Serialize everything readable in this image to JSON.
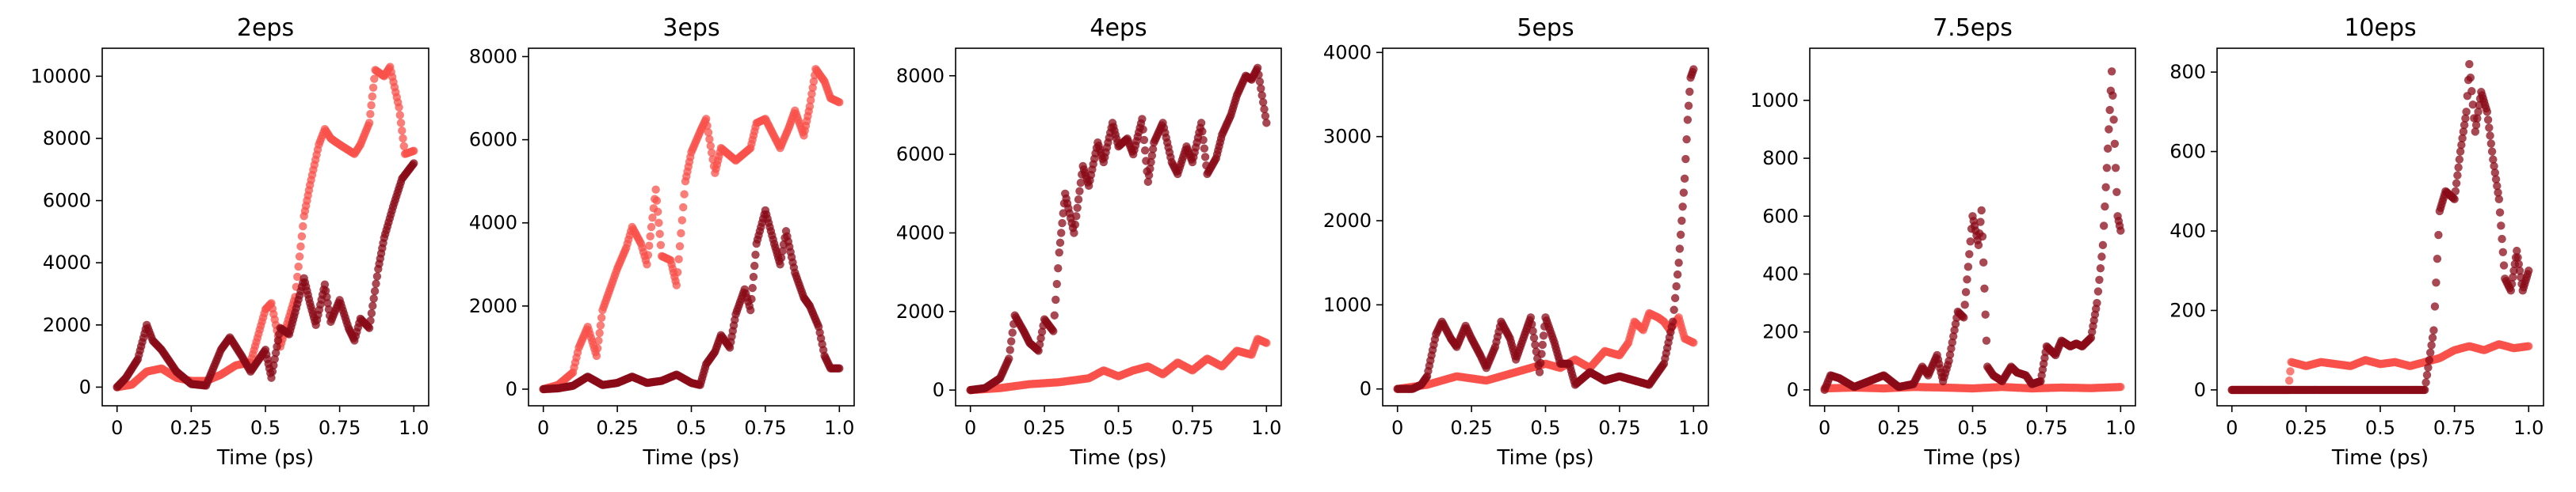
{
  "colors": {
    "series_a": "#f8524b",
    "series_b": "#8a0b18"
  },
  "chart_data": [
    {
      "type": "scatter",
      "title": "2eps",
      "xlabel": "Time (ps)",
      "xlim": [
        -0.05,
        1.05
      ],
      "ylim": [
        -600,
        10900
      ],
      "xticks": [
        0,
        0.25,
        0.5,
        0.75,
        1.0
      ],
      "xtick_labels": [
        "0",
        "0.25",
        "0.5",
        "0.75",
        "1.0"
      ],
      "yticks": [
        0,
        2000,
        4000,
        6000,
        8000,
        10000
      ],
      "ytick_labels": [
        "0",
        "2000",
        "4000",
        "6000",
        "8000",
        "10000"
      ],
      "series": [
        {
          "color": "series_a",
          "x": [
            0,
            0.05,
            0.1,
            0.15,
            0.2,
            0.25,
            0.3,
            0.35,
            0.4,
            0.45,
            0.5,
            0.52,
            0.55,
            0.6,
            0.63,
            0.65,
            0.68,
            0.7,
            0.72,
            0.75,
            0.8,
            0.82,
            0.85,
            0.87,
            0.9,
            0.92,
            0.95,
            0.97,
            1.0
          ],
          "y": [
            0,
            80,
            500,
            600,
            300,
            200,
            200,
            400,
            700,
            800,
            2500,
            2700,
            1300,
            2900,
            5500,
            6500,
            7800,
            8300,
            8000,
            7800,
            7500,
            7800,
            8500,
            10200,
            10000,
            10300,
            9000,
            7500,
            7600
          ]
        },
        {
          "color": "series_b",
          "x": [
            0,
            0.03,
            0.07,
            0.1,
            0.12,
            0.15,
            0.2,
            0.25,
            0.3,
            0.35,
            0.38,
            0.42,
            0.45,
            0.5,
            0.52,
            0.55,
            0.58,
            0.6,
            0.63,
            0.65,
            0.67,
            0.7,
            0.72,
            0.75,
            0.78,
            0.8,
            0.82,
            0.85,
            0.88,
            0.9,
            0.93,
            0.96,
            1.0
          ],
          "y": [
            0,
            300,
            900,
            2000,
            1500,
            1200,
            500,
            100,
            50,
            1200,
            1600,
            1000,
            500,
            1200,
            300,
            1900,
            1700,
            2400,
            3500,
            2700,
            2000,
            3300,
            2100,
            2800,
            1900,
            1500,
            2200,
            1900,
            3800,
            4800,
            5800,
            6700,
            7200
          ]
        }
      ]
    },
    {
      "type": "scatter",
      "title": "3eps",
      "xlabel": "Time (ps)",
      "xlim": [
        -0.05,
        1.05
      ],
      "ylim": [
        -400,
        8200
      ],
      "xticks": [
        0,
        0.25,
        0.5,
        0.75,
        1.0
      ],
      "xtick_labels": [
        "0",
        "0.25",
        "0.5",
        "0.75",
        "1.0"
      ],
      "yticks": [
        0,
        2000,
        4000,
        6000,
        8000
      ],
      "ytick_labels": [
        "0",
        "2000",
        "4000",
        "6000",
        "8000"
      ],
      "series": [
        {
          "color": "series_a",
          "x": [
            0,
            0.05,
            0.1,
            0.12,
            0.15,
            0.18,
            0.2,
            0.23,
            0.25,
            0.28,
            0.3,
            0.33,
            0.35,
            0.38,
            0.4,
            0.43,
            0.45,
            0.48,
            0.5,
            0.53,
            0.55,
            0.58,
            0.6,
            0.65,
            0.7,
            0.72,
            0.75,
            0.8,
            0.83,
            0.85,
            0.88,
            0.9,
            0.92,
            0.95,
            0.97,
            1.0
          ],
          "y": [
            0,
            100,
            400,
            1000,
            1500,
            800,
            1900,
            2500,
            2900,
            3400,
            3900,
            3500,
            3000,
            4800,
            3200,
            3100,
            2500,
            5000,
            5700,
            6200,
            6500,
            5200,
            5800,
            5500,
            5800,
            6400,
            6500,
            5800,
            6300,
            6700,
            6100,
            6800,
            7700,
            7400,
            7000,
            6900
          ]
        },
        {
          "color": "series_b",
          "x": [
            0,
            0.05,
            0.1,
            0.15,
            0.2,
            0.25,
            0.3,
            0.35,
            0.4,
            0.45,
            0.5,
            0.53,
            0.55,
            0.58,
            0.6,
            0.63,
            0.65,
            0.68,
            0.7,
            0.72,
            0.75,
            0.78,
            0.8,
            0.82,
            0.85,
            0.88,
            0.9,
            0.93,
            0.95,
            0.97,
            1.0
          ],
          "y": [
            0,
            20,
            80,
            300,
            100,
            150,
            300,
            150,
            200,
            350,
            150,
            100,
            600,
            900,
            1300,
            1000,
            1800,
            2400,
            1900,
            3500,
            4300,
            3500,
            3000,
            3800,
            2800,
            2200,
            2000,
            1500,
            800,
            500,
            500
          ]
        }
      ]
    },
    {
      "type": "scatter",
      "title": "4eps",
      "xlabel": "Time (ps)",
      "xlim": [
        -0.05,
        1.05
      ],
      "ylim": [
        -400,
        8700
      ],
      "xticks": [
        0,
        0.25,
        0.5,
        0.75,
        1.0
      ],
      "xtick_labels": [
        "0",
        "0.25",
        "0.5",
        "0.75",
        "1.0"
      ],
      "yticks": [
        0,
        2000,
        4000,
        6000,
        8000
      ],
      "ytick_labels": [
        "0",
        "2000",
        "4000",
        "6000",
        "8000"
      ],
      "series": [
        {
          "color": "series_a",
          "x": [
            0,
            0.1,
            0.2,
            0.3,
            0.4,
            0.45,
            0.5,
            0.55,
            0.6,
            0.65,
            0.7,
            0.75,
            0.8,
            0.85,
            0.9,
            0.95,
            0.97,
            1.0
          ],
          "y": [
            0,
            50,
            150,
            200,
            300,
            500,
            350,
            500,
            600,
            400,
            700,
            500,
            800,
            600,
            1000,
            900,
            1300,
            1200
          ]
        },
        {
          "color": "series_b",
          "x": [
            0,
            0.05,
            0.1,
            0.13,
            0.15,
            0.18,
            0.2,
            0.23,
            0.25,
            0.28,
            0.3,
            0.32,
            0.35,
            0.38,
            0.4,
            0.43,
            0.45,
            0.48,
            0.5,
            0.53,
            0.55,
            0.58,
            0.6,
            0.62,
            0.65,
            0.68,
            0.7,
            0.73,
            0.75,
            0.78,
            0.8,
            0.83,
            0.85,
            0.88,
            0.9,
            0.93,
            0.95,
            0.97,
            1.0
          ],
          "y": [
            0,
            50,
            300,
            800,
            1900,
            1500,
            1200,
            1000,
            1800,
            1500,
            3500,
            5000,
            4000,
            5700,
            5200,
            6300,
            5800,
            6800,
            6200,
            6400,
            6000,
            6900,
            5300,
            6300,
            6800,
            5800,
            5500,
            6200,
            5800,
            6800,
            5500,
            5900,
            6500,
            7000,
            7500,
            8000,
            7900,
            8200,
            6800
          ]
        }
      ]
    },
    {
      "type": "scatter",
      "title": "5eps",
      "xlabel": "Time (ps)",
      "xlim": [
        -0.05,
        1.05
      ],
      "ylim": [
        -200,
        4050
      ],
      "xticks": [
        0,
        0.25,
        0.5,
        0.75,
        1.0
      ],
      "xtick_labels": [
        "0",
        "0.25",
        "0.5",
        "0.75",
        "1.0"
      ],
      "yticks": [
        0,
        1000,
        2000,
        3000,
        4000
      ],
      "ytick_labels": [
        "0",
        "1000",
        "2000",
        "3000",
        "4000"
      ],
      "series": [
        {
          "color": "series_a",
          "x": [
            0,
            0.1,
            0.2,
            0.3,
            0.4,
            0.45,
            0.5,
            0.55,
            0.6,
            0.65,
            0.7,
            0.75,
            0.78,
            0.8,
            0.83,
            0.85,
            0.88,
            0.9,
            0.92,
            0.95,
            0.97,
            1.0
          ],
          "y": [
            0,
            50,
            150,
            100,
            200,
            250,
            300,
            250,
            350,
            250,
            450,
            400,
            550,
            800,
            700,
            900,
            850,
            800,
            700,
            850,
            600,
            550
          ]
        },
        {
          "color": "series_b",
          "x": [
            0,
            0.05,
            0.08,
            0.1,
            0.13,
            0.15,
            0.18,
            0.2,
            0.23,
            0.25,
            0.28,
            0.3,
            0.33,
            0.35,
            0.38,
            0.4,
            0.43,
            0.45,
            0.48,
            0.5,
            0.53,
            0.55,
            0.58,
            0.6,
            0.65,
            0.7,
            0.75,
            0.8,
            0.85,
            0.9,
            0.93,
            0.95,
            0.97,
            0.98,
            0.99,
            1.0
          ],
          "y": [
            0,
            0,
            50,
            150,
            650,
            800,
            600,
            500,
            750,
            600,
            400,
            250,
            500,
            800,
            600,
            350,
            650,
            850,
            200,
            850,
            550,
            300,
            300,
            50,
            200,
            100,
            150,
            100,
            50,
            300,
            800,
            1500,
            2500,
            3200,
            3700,
            3800
          ]
        }
      ]
    },
    {
      "type": "scatter",
      "title": "7.5eps",
      "xlabel": "Time (ps)",
      "xlim": [
        -0.05,
        1.05
      ],
      "ylim": [
        -55,
        1180
      ],
      "xticks": [
        0,
        0.25,
        0.5,
        0.75,
        1.0
      ],
      "xtick_labels": [
        "0",
        "0.25",
        "0.5",
        "0.75",
        "1.0"
      ],
      "yticks": [
        0,
        200,
        400,
        600,
        800,
        1000
      ],
      "ytick_labels": [
        "0",
        "200",
        "400",
        "600",
        "800",
        "1000"
      ],
      "series": [
        {
          "color": "series_a",
          "x": [
            0,
            0.1,
            0.2,
            0.3,
            0.4,
            0.5,
            0.6,
            0.7,
            0.8,
            0.9,
            1.0
          ],
          "y": [
            5,
            8,
            5,
            10,
            8,
            5,
            10,
            5,
            8,
            6,
            10
          ]
        },
        {
          "color": "series_b",
          "x": [
            0,
            0.02,
            0.05,
            0.1,
            0.15,
            0.2,
            0.25,
            0.3,
            0.33,
            0.35,
            0.38,
            0.4,
            0.42,
            0.45,
            0.47,
            0.5,
            0.52,
            0.53,
            0.55,
            0.57,
            0.6,
            0.63,
            0.65,
            0.68,
            0.7,
            0.73,
            0.75,
            0.78,
            0.8,
            0.83,
            0.85,
            0.87,
            0.9,
            0.92,
            0.94,
            0.95,
            0.96,
            0.97,
            0.98,
            0.99,
            1.0
          ],
          "y": [
            0,
            50,
            40,
            10,
            30,
            50,
            10,
            20,
            80,
            50,
            120,
            30,
            100,
            270,
            250,
            600,
            500,
            620,
            80,
            50,
            30,
            80,
            60,
            50,
            20,
            30,
            150,
            120,
            170,
            150,
            160,
            150,
            180,
            300,
            500,
            700,
            900,
            1100,
            850,
            600,
            550
          ]
        }
      ]
    },
    {
      "type": "scatter",
      "title": "10eps",
      "xlabel": "Time (ps)",
      "xlim": [
        -0.05,
        1.05
      ],
      "ylim": [
        -40,
        860
      ],
      "xticks": [
        0,
        0.25,
        0.5,
        0.75,
        1.0
      ],
      "xtick_labels": [
        "0",
        "0.25",
        "0.5",
        "0.75",
        "1.0"
      ],
      "yticks": [
        0,
        200,
        400,
        600,
        800
      ],
      "ytick_labels": [
        "0",
        "200",
        "400",
        "600",
        "800"
      ],
      "series": [
        {
          "color": "series_a",
          "x": [
            0,
            0.1,
            0.19,
            0.2,
            0.25,
            0.3,
            0.35,
            0.4,
            0.45,
            0.5,
            0.55,
            0.6,
            0.65,
            0.7,
            0.75,
            0.8,
            0.85,
            0.9,
            0.95,
            1.0
          ],
          "y": [
            0,
            0,
            0,
            70,
            60,
            70,
            65,
            60,
            75,
            65,
            70,
            60,
            70,
            80,
            100,
            110,
            100,
            115,
            105,
            110
          ]
        },
        {
          "color": "series_b",
          "x": [
            0,
            0.1,
            0.2,
            0.3,
            0.4,
            0.5,
            0.6,
            0.65,
            0.68,
            0.7,
            0.72,
            0.75,
            0.77,
            0.79,
            0.8,
            0.82,
            0.84,
            0.86,
            0.88,
            0.9,
            0.92,
            0.94,
            0.96,
            0.98,
            1.0
          ],
          "y": [
            0,
            0,
            0,
            0,
            0,
            0,
            0,
            0,
            150,
            450,
            500,
            480,
            600,
            700,
            820,
            650,
            750,
            700,
            580,
            480,
            280,
            250,
            350,
            250,
            300
          ]
        }
      ]
    }
  ]
}
